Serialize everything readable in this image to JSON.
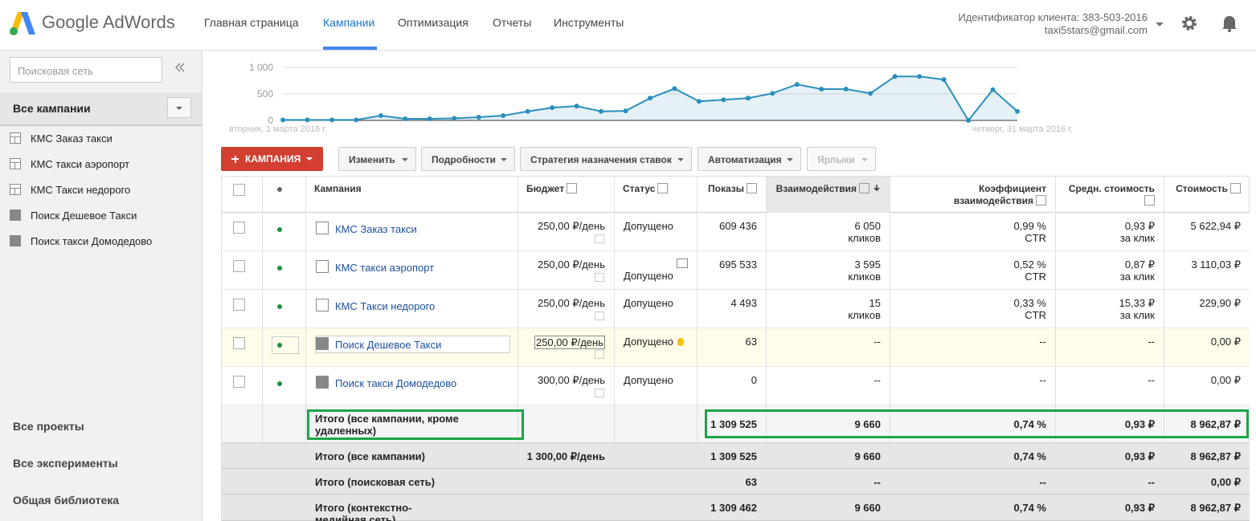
{
  "header": {
    "logo": "Google AdWords",
    "nav": [
      "Главная страница",
      "Кампании",
      "Оптимизация",
      "Отчеты",
      "Инструменты"
    ],
    "active_nav": 1,
    "account": "Идентификатор клиента: 383-503-2016",
    "email": "taxi5stars@gmail.com"
  },
  "sidebar": {
    "search_placeholder": "Поисковая сеть",
    "all_campaigns": "Все кампании",
    "campaigns": [
      "КМС Заказ такси",
      "КМС такси аэропорт",
      "КМС Такси недорого",
      "Поиск Дешевое Такси",
      "Поиск такси Домодедово"
    ],
    "links": [
      "Все проекты",
      "Все эксперименты",
      "Общая библиотека"
    ]
  },
  "chart_data": {
    "type": "line",
    "categories": [
      "вторник, 1 марта 2016 г.",
      null,
      null,
      null,
      null,
      null,
      null,
      null,
      null,
      null,
      null,
      null,
      null,
      null,
      null,
      null,
      null,
      null,
      null,
      null,
      null,
      null,
      null,
      null,
      null,
      null,
      null,
      null,
      null,
      null,
      "четверг, 31 марта 2016 г."
    ],
    "values": [
      10,
      10,
      10,
      10,
      90,
      30,
      30,
      40,
      60,
      90,
      170,
      240,
      270,
      170,
      180,
      420,
      600,
      360,
      390,
      420,
      510,
      680,
      590,
      590,
      510,
      830,
      830,
      770,
      0,
      580,
      170
    ],
    "color": "#2a8fbd",
    "ylim": [
      0,
      1000
    ],
    "yticks": [
      0,
      500,
      {
        "value": 1000,
        "label": "1 000"
      }
    ],
    "grid": true
  },
  "toolbar": {
    "new": "КАМПАНИЯ",
    "buttons": [
      "Изменить",
      "Подробности",
      "Стратегия назначения ставок",
      "Автоматизация",
      "Ярлыки"
    ]
  },
  "table": {
    "columns": [
      "Кампания",
      "Бюджет",
      "Статус",
      "Показы",
      "Взаимодействия",
      "Коэффициент взаимодействия",
      "Средн. стоимость",
      "Стоимость"
    ],
    "rows": [
      {
        "name": "КМС Заказ такси",
        "budget": "250,00 ₽/день",
        "status": "Допущено",
        "impressions": "609 436",
        "interactions": [
          "6 050",
          "кликов"
        ],
        "rate": [
          "0,99 %",
          "CTR"
        ],
        "avg_cost": [
          "0,93 ₽",
          "за клик"
        ],
        "cost": "5 622,94 ₽"
      },
      {
        "name": "КМС такси аэропорт",
        "budget": "250,00 ₽/день",
        "status": "Допущено",
        "impressions": "695 533",
        "interactions": [
          "3 595",
          "кликов"
        ],
        "rate": [
          "0,52 %",
          "CTR"
        ],
        "avg_cost": [
          "0,87 ₽",
          "за клик"
        ],
        "cost": "3 110,03 ₽"
      },
      {
        "name": "КМС Такси недорого",
        "budget": "250,00 ₽/день",
        "status": "Допущено",
        "impressions": "4 493",
        "interactions": [
          "15",
          "кликов"
        ],
        "rate": [
          "0,33 %",
          "CTR"
        ],
        "avg_cost": [
          "15,33 ₽",
          "за клик"
        ],
        "cost": "229,90 ₽"
      },
      {
        "name": "Поиск Дешевое Такси",
        "budget": "250,00 ₽/день",
        "status": "Допущено",
        "impressions": "63",
        "interactions": [
          "--"
        ],
        "rate": [
          "--"
        ],
        "avg_cost": [
          "--"
        ],
        "cost": "0,00 ₽"
      },
      {
        "name": "Поиск такси Домодедово",
        "budget": "300,00 ₽/день",
        "status": "Допущено",
        "impressions": "0",
        "interactions": [
          "--"
        ],
        "rate": [
          "--"
        ],
        "avg_cost": [
          "--"
        ],
        "cost": "0,00 ₽"
      }
    ],
    "totals": [
      {
        "name": "Итого (все кампании, кроме удаленных)",
        "impressions": "1 309 525",
        "interactions": [
          "9 660"
        ],
        "rate": [
          "0,74 %"
        ],
        "avg_cost": [
          "0,93 ₽"
        ],
        "cost": "8 962,87 ₽"
      },
      {
        "name": "Итого (все кампании)",
        "budget": "1 300,00 ₽/день",
        "impressions": "1 309 525",
        "interactions": [
          "9 660"
        ],
        "rate": [
          "0,74 %"
        ],
        "avg_cost": [
          "0,93 ₽"
        ],
        "cost": "8 962,87 ₽"
      },
      {
        "name": "Итого (поисковая сеть)",
        "impressions": "63",
        "interactions": [
          "--"
        ],
        "rate": [
          "--"
        ],
        "avg_cost": [
          "--"
        ],
        "cost": "0,00 ₽"
      },
      {
        "name": "Итого (контекстно-медийная сеть)",
        "impressions": "1 309 462",
        "interactions": [
          "9 660"
        ],
        "rate": [
          "0,74 %"
        ],
        "avg_cost": [
          "0,93 ₽"
        ],
        "cost": "8 962,87 ₽"
      }
    ]
  }
}
